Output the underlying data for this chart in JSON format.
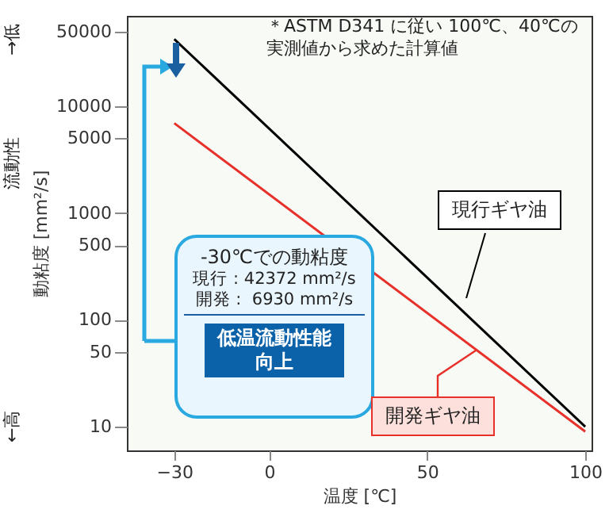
{
  "chart_data": {
    "type": "line",
    "xlabel": "温度 [℃]",
    "ylabel": "動粘度 [mm²/s]",
    "x": [
      -30,
      100
    ],
    "series": [
      {
        "name": "現行ギヤ油",
        "color": "#000000",
        "values": [
          42372,
          10
        ]
      },
      {
        "name": "開発ギヤ油",
        "color": "#e8302a",
        "values": [
          6930,
          9
        ]
      }
    ],
    "log": "y",
    "xlim": [
      -45,
      102
    ],
    "xticks": [
      -30,
      0,
      50,
      100
    ],
    "ylim": [
      6,
      70000
    ],
    "yticks": [
      10,
      50,
      100,
      500,
      1000,
      5000,
      10000,
      50000
    ],
    "grid": false,
    "marker": "none",
    "line_style": "solid",
    "annotations": [
      "＊ASTM D341 に従い 100℃、40℃の実測値から求めた計算値",
      "流動性",
      "→低",
      "←高",
      "-30℃での動粘度",
      "現行 : 42372 mm²/s",
      "開発 :  6930 mm²/s",
      "低温流動性能向上"
    ]
  }
}
